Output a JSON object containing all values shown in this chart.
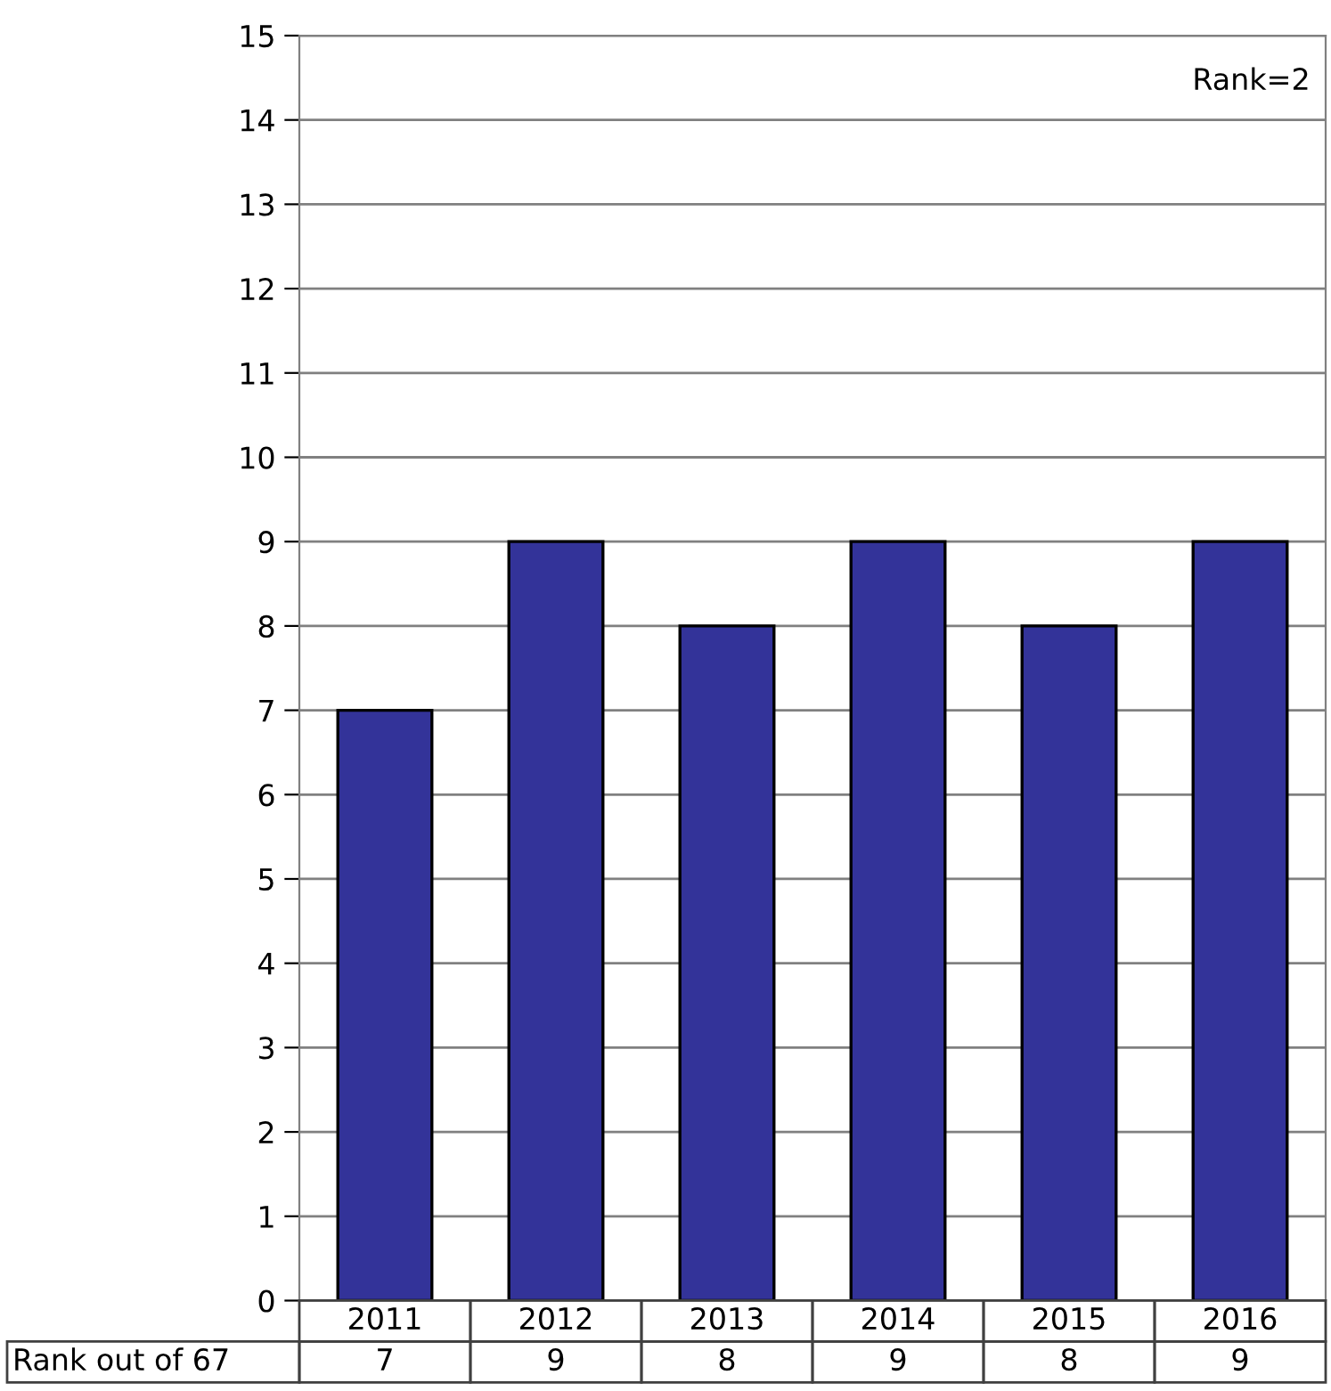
{
  "chart_data": {
    "type": "bar",
    "categories": [
      "2011",
      "2012",
      "2013",
      "2014",
      "2015",
      "2016"
    ],
    "values": [
      7,
      9,
      8,
      9,
      8,
      9
    ],
    "color": "#333399",
    "ylim": [
      0,
      15
    ],
    "yticks": [
      0,
      1,
      2,
      3,
      4,
      5,
      6,
      7,
      8,
      9,
      10,
      11,
      12,
      13,
      14,
      15
    ],
    "grid": "y",
    "data_labels": true,
    "annotations": [
      "Rank=2",
      "Rank out of 67"
    ]
  }
}
